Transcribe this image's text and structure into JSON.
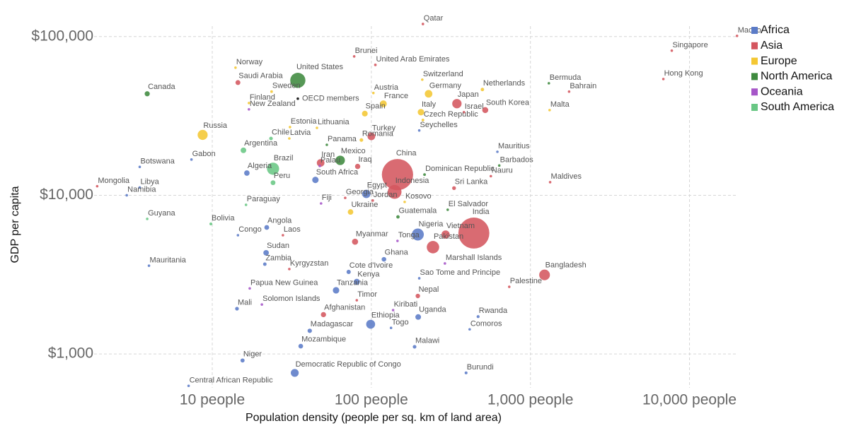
{
  "chart_data": {
    "type": "scatter",
    "xlabel": "Population density (people per sq. km of land area)",
    "ylabel": "GDP per capita",
    "xscale": "log",
    "yscale": "log",
    "xlim": [
      1.7,
      21000
    ],
    "ylim": [
      600,
      125000
    ],
    "xticks": [
      {
        "value": 10,
        "label": "10 people"
      },
      {
        "value": 100,
        "label": "100 people"
      },
      {
        "value": 1000,
        "label": "1,000 people"
      },
      {
        "value": 10000,
        "label": "10,000 people"
      }
    ],
    "yticks": [
      {
        "value": 1000,
        "label": "$1,000"
      },
      {
        "value": 10000,
        "label": "$10,000"
      },
      {
        "value": 100000,
        "label": "$100,000"
      }
    ],
    "grid": true,
    "legend": "top-right",
    "series": [
      {
        "name": "Africa",
        "color": "#5b7bc7",
        "labels": [
          "Mauritius",
          "Seychelles",
          "Egypt",
          "Algeria",
          "Botswana",
          "Gabon",
          "Libya",
          "Namibia",
          "Nigeria",
          "Angola",
          "Congo",
          "Sudan",
          "Zambia",
          "Mauritania",
          "Cote d'Ivoire",
          "Ghana",
          "Kenya",
          "Tanzania",
          "Mali",
          "Uganda",
          "Ethiopia",
          "Togo",
          "Madagascar",
          "Rwanda",
          "Comoros",
          "Malawi",
          "Mozambique",
          "Niger",
          "Democratic Republic of Congo",
          "Burundi",
          "Central African Republic",
          "Sao Tome and Principe",
          "South Africa"
        ],
        "x": [
          620,
          200,
          93,
          16.5,
          3.5,
          7.4,
          3.5,
          2.9,
          196,
          22,
          14.5,
          21.8,
          21.4,
          4,
          72,
          120,
          81,
          60,
          14.3,
          197,
          99,
          133,
          41,
          469,
          415,
          187,
          36,
          15.5,
          33,
          394,
          7.1,
          200,
          44.5
        ],
        "values": [
          18800,
          25600,
          10200,
          13800,
          15100,
          16800,
          11200,
          10000,
          5660,
          6270,
          5600,
          4340,
          3680,
          3600,
          3290,
          3950,
          2850,
          2520,
          1930,
          1710,
          1540,
          1460,
          1400,
          1720,
          1430,
          1110,
          1120,
          910,
          760,
          760,
          630,
          3000,
          12500
        ],
        "sizes": [
          1.3,
          0.1,
          100,
          43,
          2.3,
          2.2,
          6.9,
          2.5,
          206,
          33,
          5.5,
          44,
          18,
          4.6,
          26,
          31,
          54,
          60,
          20,
          46,
          115,
          8,
          28,
          13,
          0.9,
          19,
          31,
          24,
          90,
          12,
          4.8,
          0.2,
          59
        ]
      },
      {
        "name": "Asia",
        "color": "#d4565f",
        "labels": [
          "Qatar",
          "Macao",
          "Singapore",
          "Hong Kong",
          "Brunei",
          "United Arab Emirates",
          "Bahrain",
          "Saudi Arabia",
          "Japan",
          "Israel",
          "South Korea",
          "Turkey",
          "China",
          "Indonesia",
          "Iran",
          "Iraq",
          "Sri Lanka",
          "Nauru",
          "Maldives",
          "Mongolia",
          "Jordan",
          "Myanmar",
          "Vietnam",
          "Pakistan",
          "India",
          "Laos",
          "Kyrgyzstan",
          "Bangladesh",
          "Palestine",
          "Nepal",
          "Afghanistan",
          "Timor",
          "Georgia"
        ],
        "x": [
          211,
          19900,
          7740,
          6850,
          78,
          106,
          1750,
          14.5,
          345,
          382,
          520,
          100,
          146,
          140,
          48,
          82,
          331,
          564,
          1330,
          1.89,
          102,
          79,
          293,
          244,
          441,
          27.8,
          30.5,
          1227,
          736,
          196,
          50,
          81,
          68.5
        ],
        "values": [
          120000,
          101000,
          81500,
          54000,
          75000,
          66300,
          45000,
          51300,
          37800,
          33400,
          34400,
          23500,
          13500,
          10500,
          16000,
          15200,
          11100,
          13200,
          12100,
          11400,
          9270,
          5100,
          5660,
          4710,
          5780,
          5600,
          3430,
          3150,
          2650,
          2320,
          1770,
          2180,
          9630
        ],
        "sizes": [
          2.9,
          0.65,
          5.7,
          7.5,
          0.44,
          9.9,
          1.7,
          35,
          126,
          9,
          52,
          84,
          1400,
          274,
          84,
          40,
          21,
          0.01,
          0.54,
          3.3,
          10,
          54,
          97,
          221,
          1380,
          7.3,
          6.5,
          165,
          5,
          29,
          39,
          1.3,
          3.7
        ]
      },
      {
        "name": "Europe",
        "color": "#f4c733",
        "labels": [
          "Norway",
          "Switzerland",
          "Sweden",
          "Netherlands",
          "Austria",
          "Germany",
          "Finland",
          "France",
          "Italy",
          "Spain",
          "Malta",
          "Czech Republic",
          "Estonia",
          "Lithuania",
          "Russia",
          "Latvia",
          "Romania",
          "Kosovo",
          "Ukraine"
        ],
        "x": [
          14,
          209,
          23.6,
          499,
          103,
          229,
          17,
          119,
          205,
          91,
          1320,
          211,
          30.8,
          45.5,
          8.7,
          30.5,
          86.6,
          162,
          74
        ],
        "values": [
          63700,
          53500,
          45000,
          46400,
          44100,
          43600,
          38100,
          37700,
          33400,
          32700,
          34400,
          29800,
          26900,
          26600,
          24000,
          22800,
          22300,
          9080,
          7850
        ],
        "sizes": [
          5.4,
          8.6,
          10.3,
          17.4,
          9,
          83,
          5.5,
          67,
          60,
          47,
          0.5,
          10.7,
          1.3,
          2.8,
          145,
          1.9,
          19,
          1.8,
          44
        ]
      },
      {
        "name": "North America",
        "color": "#3f8a3f",
        "labels": [
          "United States",
          "Canada",
          "Bermuda",
          "Panama",
          "Mexico",
          "Dominican Republic",
          "Barbados",
          "Guatemala",
          "El Salvador"
        ],
        "x": [
          34.5,
          3.9,
          1306,
          52.5,
          63.7,
          216,
          637,
          147,
          302
        ],
        "values": [
          53000,
          43600,
          50800,
          20800,
          16600,
          13500,
          15400,
          7310,
          8110
        ],
        "sizes": [
          330,
          38,
          0.06,
          4.3,
          128,
          10.8,
          0.29,
          17,
          6.5
        ]
      },
      {
        "name": "Oceania",
        "color": "#a656c8",
        "labels": [
          "New Zealand",
          "Fiji",
          "Tonga",
          "Papua New Guinea",
          "Solomon Islands",
          "Kiribati",
          "Marshall Islands",
          "Palau"
        ],
        "x": [
          17,
          48.3,
          146,
          17.2,
          20.5,
          137,
          290,
          47.4
        ],
        "values": [
          34800,
          8880,
          5160,
          2590,
          2050,
          1890,
          3720,
          15300
        ],
        "sizes": [
          5,
          0.9,
          0.1,
          9,
          0.7,
          0.12,
          0.06,
          0.02
        ]
      },
      {
        "name": "South America",
        "color": "#69c784",
        "labels": [
          "Chile",
          "Argentina",
          "Brazil",
          "Peru",
          "Paraguay",
          "Bolivia",
          "Guyana"
        ],
        "x": [
          23.4,
          15.7,
          24.1,
          24.1,
          16.3,
          9.8,
          3.9
        ],
        "values": [
          22800,
          19200,
          14700,
          12000,
          8710,
          6600,
          7100
        ],
        "sizes": [
          19,
          45,
          212,
          33,
          7,
          11.7,
          0.8
        ]
      }
    ],
    "aggregates": {
      "color": "#222222",
      "labels": [
        "OECD members"
      ],
      "x": [
        34.5
      ],
      "values": [
        40600
      ]
    }
  }
}
